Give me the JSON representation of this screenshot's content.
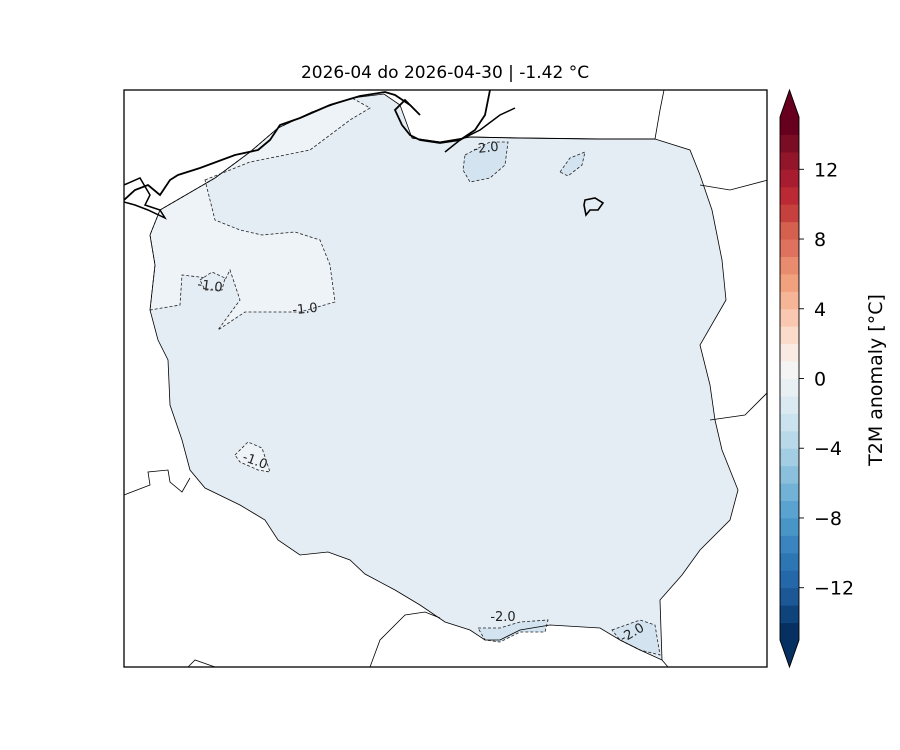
{
  "map": {
    "title": "2026-04 do 2026-04-30 | -1.42 °C",
    "region_fill": "#e4ecf4",
    "warm_zone_fill": "#eef3f7",
    "cold_zone_fill": "#d3e3ef",
    "contours": [
      {
        "value": "-1.0",
        "style": "dashed"
      },
      {
        "value": "-1.0",
        "style": "dashed"
      },
      {
        "value": "-1.0",
        "style": "dashed"
      },
      {
        "value": "-2.0",
        "style": "dashed"
      },
      {
        "value": "-2.0",
        "style": "dashed"
      },
      {
        "value": "-2.0",
        "style": "dashed"
      }
    ]
  },
  "colorbar": {
    "label": "T2M anomaly [°C]",
    "vmin": -15,
    "vmax": 15,
    "extend": "both",
    "ticks": [
      {
        "value": 12,
        "label": "12"
      },
      {
        "value": 8,
        "label": "8"
      },
      {
        "value": 4,
        "label": "4"
      },
      {
        "value": 0,
        "label": "0"
      },
      {
        "value": -4,
        "label": "−4"
      },
      {
        "value": -8,
        "label": "−8"
      },
      {
        "value": -12,
        "label": "−12"
      }
    ],
    "colors": [
      "#053061",
      "#0f437b",
      "#1b5895",
      "#2468a9",
      "#2d76b4",
      "#3a85bf",
      "#4895c7",
      "#5aa2cf",
      "#72b2d7",
      "#8bc0dd",
      "#a3cde3",
      "#b8d9e9",
      "#cbe3ef",
      "#dbeaf2",
      "#e8f0f4",
      "#f4f4f4",
      "#f9ebe3",
      "#fbdccb",
      "#fac8b0",
      "#f6b596",
      "#f2a17f",
      "#e88b6e",
      "#de725e",
      "#d4604d",
      "#c6413e",
      "#bb2a34",
      "#a71c2e",
      "#921529",
      "#7a0c24",
      "#67001f"
    ],
    "extend_low_color": "#053061",
    "extend_high_color": "#67001f"
  }
}
